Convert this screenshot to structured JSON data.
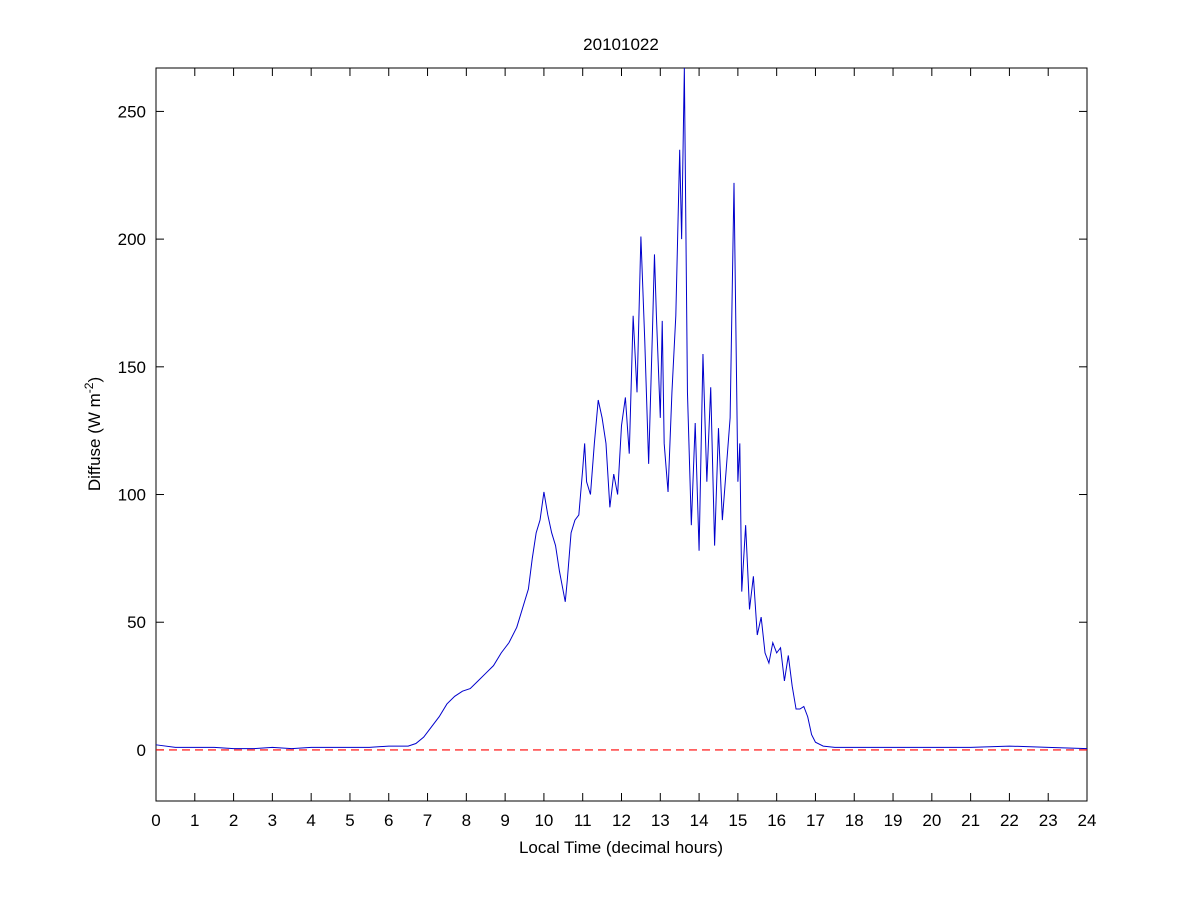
{
  "chart_data": {
    "type": "line",
    "title": "20101022",
    "xlabel": "Local Time (decimal hours)",
    "ylabel": "Diffuse (W m",
    "ylabel_sup": "-2",
    "ylabel_end": ")",
    "xlim": [
      0,
      24
    ],
    "ylim": [
      -20,
      267
    ],
    "xticks": [
      0,
      1,
      2,
      3,
      4,
      5,
      6,
      7,
      8,
      9,
      10,
      11,
      12,
      13,
      14,
      15,
      16,
      17,
      18,
      19,
      20,
      21,
      22,
      23,
      24
    ],
    "yticks": [
      0,
      50,
      100,
      150,
      200,
      250
    ],
    "reference_line": {
      "value": 0,
      "color": "#ff0000"
    },
    "series": [
      {
        "color": "#0000cc",
        "x": [
          0,
          0.5,
          1,
          1.5,
          2,
          2.5,
          3,
          3.5,
          4,
          4.5,
          5,
          5.5,
          6,
          6.5,
          6.7,
          6.9,
          7.1,
          7.3,
          7.5,
          7.7,
          7.9,
          8.1,
          8.3,
          8.5,
          8.7,
          8.9,
          9.0,
          9.1,
          9.3,
          9.5,
          9.6,
          9.7,
          9.8,
          9.9,
          10.0,
          10.1,
          10.2,
          10.3,
          10.4,
          10.5,
          10.55,
          10.6,
          10.7,
          10.8,
          10.9,
          11.0,
          11.05,
          11.1,
          11.2,
          11.3,
          11.4,
          11.5,
          11.6,
          11.7,
          11.8,
          11.9,
          12.0,
          12.1,
          12.2,
          12.3,
          12.4,
          12.5,
          12.6,
          12.7,
          12.8,
          12.85,
          12.9,
          13.0,
          13.05,
          13.1,
          13.2,
          13.3,
          13.4,
          13.5,
          13.55,
          13.62,
          13.7,
          13.8,
          13.9,
          14.0,
          14.1,
          14.2,
          14.3,
          14.4,
          14.5,
          14.6,
          14.7,
          14.8,
          14.9,
          15.0,
          15.05,
          15.1,
          15.2,
          15.3,
          15.4,
          15.5,
          15.6,
          15.7,
          15.8,
          15.9,
          16.0,
          16.1,
          16.2,
          16.3,
          16.4,
          16.5,
          16.6,
          16.7,
          16.8,
          16.9,
          17.0,
          17.2,
          17.5,
          18,
          19,
          20,
          21,
          22,
          23,
          24
        ],
        "values": [
          2,
          1,
          1,
          1,
          0.5,
          0.5,
          1,
          0.5,
          1,
          1,
          1,
          1,
          1.5,
          1.5,
          2.5,
          5,
          9,
          13,
          18,
          21,
          23,
          24,
          27,
          30,
          33,
          38,
          40,
          42,
          48,
          58,
          63,
          75,
          85,
          90,
          101,
          92,
          85,
          80,
          70,
          62,
          58,
          66,
          85,
          90,
          92,
          110,
          120,
          105,
          100,
          120,
          137,
          130,
          120,
          95,
          108,
          100,
          127,
          138,
          116,
          170,
          140,
          201,
          160,
          112,
          165,
          194,
          170,
          130,
          168,
          120,
          101,
          140,
          170,
          235,
          200,
          267,
          140,
          88,
          128,
          78,
          155,
          105,
          142,
          80,
          126,
          90,
          110,
          130,
          222,
          105,
          120,
          62,
          88,
          55,
          68,
          45,
          52,
          38,
          34,
          42,
          38,
          40,
          27,
          37,
          25,
          16,
          16,
          17,
          13,
          6,
          3,
          1.5,
          1,
          1,
          1,
          1,
          1,
          1.5,
          1,
          0.5
        ]
      }
    ]
  }
}
